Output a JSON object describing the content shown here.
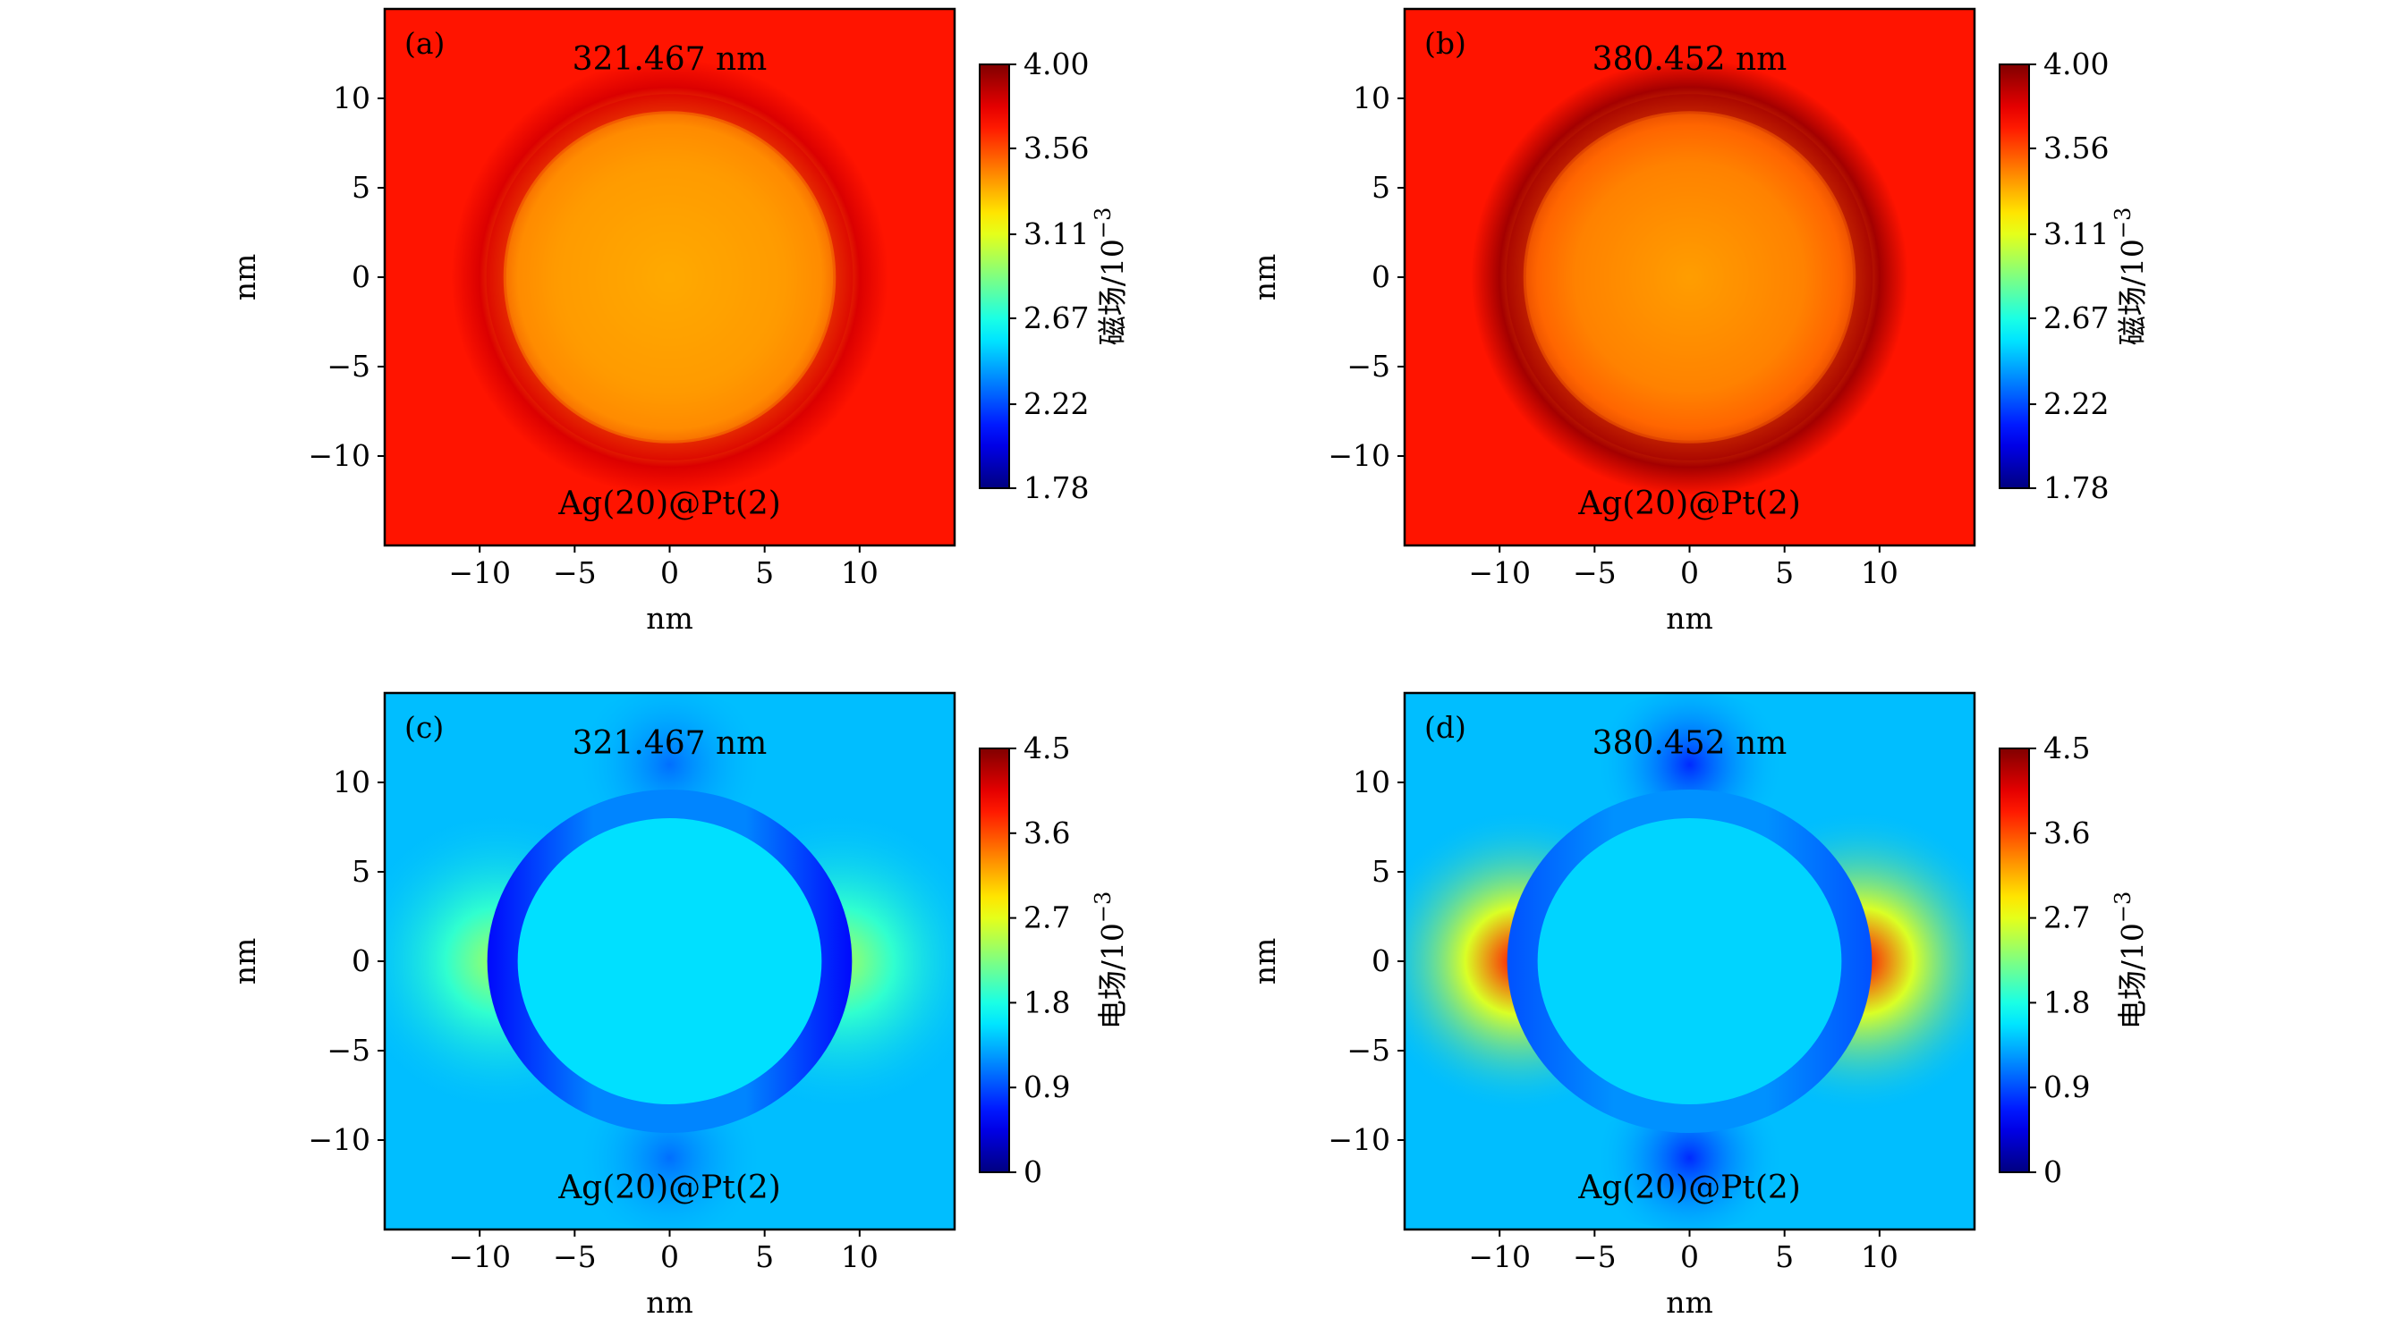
{
  "chart_data": [
    {
      "type": "heatmap",
      "panel_label": "(a)",
      "wavelength_label": "321.467 nm",
      "material_label": "Ag(20)@Pt(2)",
      "xlabel": "nm",
      "ylabel": "nm",
      "xlim": [
        -15,
        15
      ],
      "ylim": [
        -15,
        15
      ],
      "xticks": [
        -10,
        -5,
        0,
        5,
        10
      ],
      "xtick_labels": [
        "−10",
        "−5",
        "0",
        "5",
        "10"
      ],
      "yticks": [
        10,
        5,
        0,
        -5,
        -10
      ],
      "ytick_labels": [
        "10",
        "5",
        "0",
        "−5",
        "−10"
      ],
      "colorbar": {
        "label_prefix": "磁场/10",
        "label_exp": "−3",
        "range": [
          1.78,
          4.0
        ],
        "ticks": [
          4.0,
          3.56,
          3.11,
          2.67,
          2.22,
          1.78
        ],
        "tick_labels": [
          "4.00",
          "3.56",
          "3.11",
          "2.67",
          "2.22",
          "1.78"
        ],
        "colormap": "jet"
      },
      "field": "magnetic",
      "field_values": {
        "background": 3.68,
        "core_center": 3.3,
        "core_edge": 3.42,
        "shell": 3.8
      }
    },
    {
      "type": "heatmap",
      "panel_label": "(b)",
      "wavelength_label": "380.452 nm",
      "material_label": "Ag(20)@Pt(2)",
      "xlabel": "nm",
      "ylabel": "nm",
      "xlim": [
        -15,
        15
      ],
      "ylim": [
        -15,
        15
      ],
      "xticks": [
        -10,
        -5,
        0,
        5,
        10
      ],
      "xtick_labels": [
        "−10",
        "−5",
        "0",
        "5",
        "10"
      ],
      "yticks": [
        10,
        5,
        0,
        -5,
        -10
      ],
      "ytick_labels": [
        "10",
        "5",
        "0",
        "−5",
        "−10"
      ],
      "colorbar": {
        "label_prefix": "磁场/10",
        "label_exp": "−3",
        "range": [
          1.78,
          4.0
        ],
        "ticks": [
          4.0,
          3.56,
          3.11,
          2.67,
          2.22,
          1.78
        ],
        "tick_labels": [
          "4.00",
          "3.56",
          "3.11",
          "2.67",
          "2.22",
          "1.78"
        ],
        "colormap": "jet"
      },
      "field": "magnetic",
      "field_values": {
        "background": 3.68,
        "core_center": 3.28,
        "core_edge": 3.5,
        "shell": 3.92
      }
    },
    {
      "type": "heatmap",
      "panel_label": "(c)",
      "wavelength_label": "321.467 nm",
      "material_label": "Ag(20)@Pt(2)",
      "xlabel": "nm",
      "ylabel": "nm",
      "xlim": [
        -15,
        15
      ],
      "ylim": [
        -15,
        15
      ],
      "xticks": [
        -10,
        -5,
        0,
        5,
        10
      ],
      "xtick_labels": [
        "−10",
        "−5",
        "0",
        "5",
        "10"
      ],
      "yticks": [
        10,
        5,
        0,
        -5,
        -10
      ],
      "ytick_labels": [
        "10",
        "5",
        "0",
        "−5",
        "−10"
      ],
      "colorbar": {
        "label_prefix": "电场/10",
        "label_exp": "−3",
        "range": [
          0,
          4.5
        ],
        "ticks": [
          4.5,
          3.6,
          2.7,
          1.8,
          0.9,
          0
        ],
        "tick_labels": [
          "4.5",
          "3.6",
          "2.7",
          "1.8",
          "0.9",
          "0"
        ],
        "colormap": "jet"
      },
      "field": "electric",
      "field_values": {
        "background": 1.4,
        "core": 1.55,
        "shell_top": 1.15,
        "shell_side": 0.55,
        "side_peak": 2.4,
        "pole_min": 1.05
      }
    },
    {
      "type": "heatmap",
      "panel_label": "(d)",
      "wavelength_label": "380.452 nm",
      "material_label": "Ag(20)@Pt(2)",
      "xlabel": "nm",
      "ylabel": "nm",
      "xlim": [
        -15,
        15
      ],
      "ylim": [
        -15,
        15
      ],
      "xticks": [
        -10,
        -5,
        0,
        5,
        10
      ],
      "xtick_labels": [
        "−10",
        "−5",
        "0",
        "5",
        "10"
      ],
      "yticks": [
        10,
        5,
        0,
        -5,
        -10
      ],
      "ytick_labels": [
        "10",
        "5",
        "0",
        "−5",
        "−10"
      ],
      "colorbar": {
        "label_prefix": "电场/10",
        "label_exp": "−3",
        "range": [
          0,
          4.5
        ],
        "ticks": [
          4.5,
          3.6,
          2.7,
          1.8,
          0.9,
          0
        ],
        "tick_labels": [
          "4.5",
          "3.6",
          "2.7",
          "1.8",
          "0.9",
          "0"
        ],
        "colormap": "jet"
      },
      "field": "electric",
      "field_values": {
        "background": 1.4,
        "core": 1.5,
        "shell_top": 1.2,
        "shell_side": 0.9,
        "side_peak": 3.9,
        "pole_min": 0.75
      }
    }
  ]
}
